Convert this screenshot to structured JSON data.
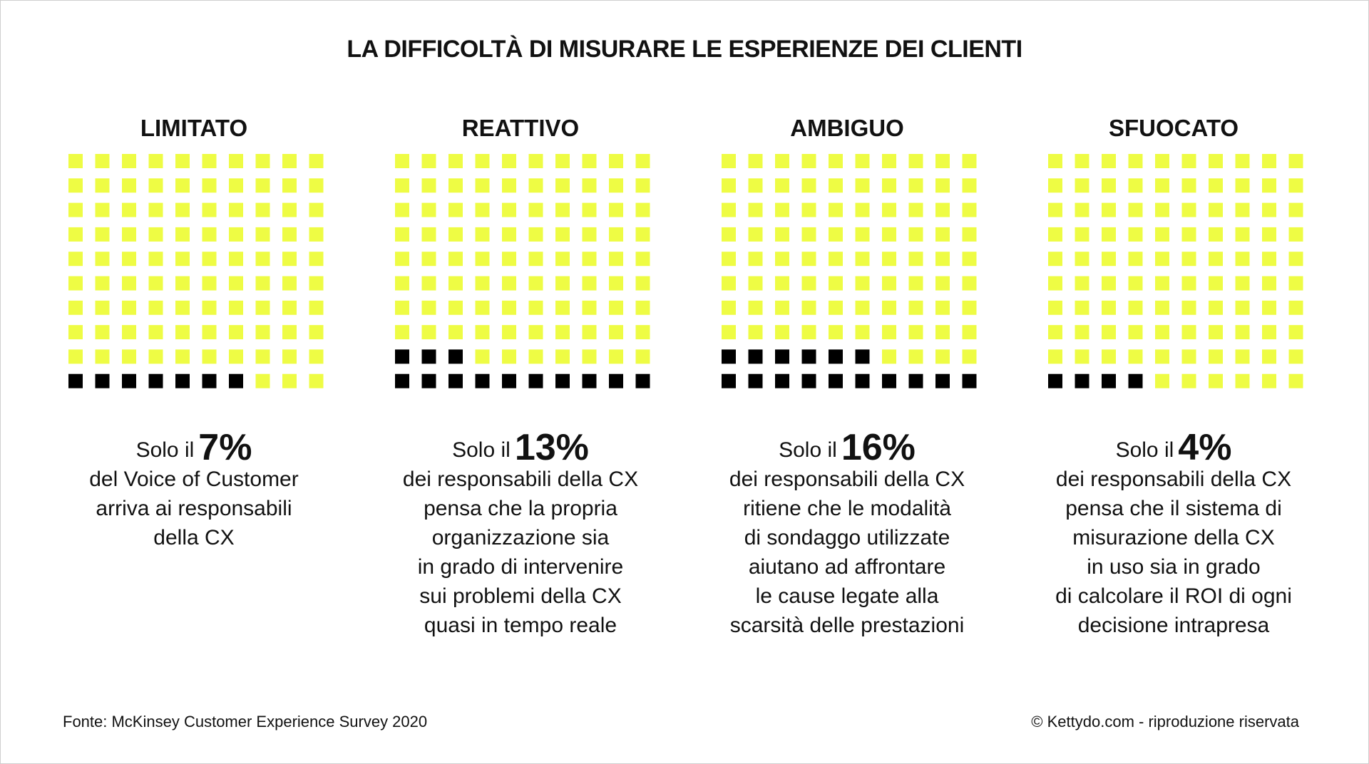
{
  "title": "LA DIFFICOLTÀ DI MISURARE LE ESPERIENZE DEI CLIENTI",
  "colors": {
    "filled": "#000000",
    "empty": "#eefc44",
    "text": "#111111"
  },
  "chart_data": [
    {
      "type": "waffle",
      "title": "LIMITATO",
      "grid": [
        10,
        10
      ],
      "value_percent": 7,
      "value_label": "7%",
      "lead": "Solo il",
      "description": "del Voice of Customer\narriva ai responsabili\ndella CX"
    },
    {
      "type": "waffle",
      "title": "REATTIVO",
      "grid": [
        10,
        10
      ],
      "value_percent": 13,
      "value_label": "13%",
      "lead": "Solo il",
      "description": "dei responsabili della CX\npensa che la propria\norganizzazione sia\nin grado di intervenire\nsui problemi della CX\nquasi in tempo reale"
    },
    {
      "type": "waffle",
      "title": "AMBIGUO",
      "grid": [
        10,
        10
      ],
      "value_percent": 16,
      "value_label": "16%",
      "lead": "Solo il",
      "description": "dei responsabili della CX\nritiene che le modalità\ndi sondaggo utilizzate\naiutano ad affrontare\nle cause legate alla\nscarsità delle prestazioni"
    },
    {
      "type": "waffle",
      "title": "SFUOCATO",
      "grid": [
        10,
        10
      ],
      "value_percent": 4,
      "value_label": "4%",
      "lead": "Solo il",
      "description": "dei responsabili della CX\npensa che il sistema di\nmisurazione della CX\nin uso sia in grado\ndi calcolare il ROI di ogni\ndecisione  intrapresa"
    }
  ],
  "footer": {
    "source": "Fonte: McKinsey  Customer Experience Survey 2020",
    "copyright": "© Kettydo.com - riproduzione riservata"
  }
}
